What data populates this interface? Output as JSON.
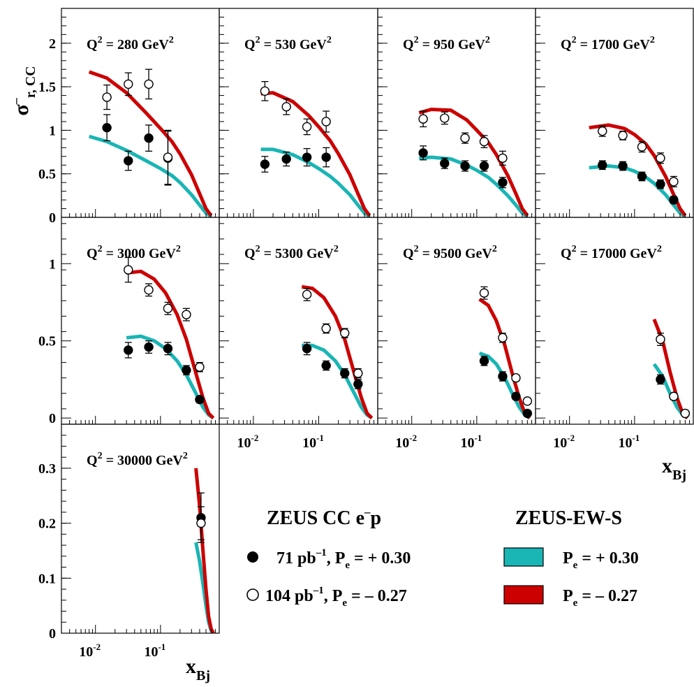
{
  "figure": {
    "ylabel_main": "σ",
    "ylabel_sup": "–",
    "ylabel_sub": "r, CC",
    "xlabel_main": "x",
    "xlabel_sub": "Bj"
  },
  "legend": {
    "data_title": "ZEUS CC e",
    "data_title_sup": "–",
    "data_title_tail": "p",
    "theory_title": "ZEUS-EW-S",
    "entries": [
      {
        "lum": "71 pb",
        "lum_sup": "–1",
        "pol_pre": ", P",
        "pol_sub": "e",
        "pol_val": " = + 0.30"
      },
      {
        "lum": "104 pb",
        "lum_sup": "–1",
        "pol_pre": ", P",
        "pol_sub": "e",
        "pol_val": " = – 0.27"
      }
    ],
    "theory_entries": [
      {
        "pre": "P",
        "sub": "e",
        "val": " = + 0.30",
        "color": "#1ab5b5"
      },
      {
        "pre": "P",
        "sub": "e",
        "val": " = – 0.27",
        "color": "#cc0000"
      }
    ]
  },
  "chart_data": [
    {
      "type": "scatter",
      "title": "Q² = 280 GeV²",
      "q2": "280",
      "xlim": [
        0.003,
        0.8
      ],
      "ylim": [
        0,
        2.4
      ],
      "yticks": [
        0,
        0.5,
        1,
        1.5,
        2
      ],
      "ytick_labels": [
        "0",
        "0.5",
        "1",
        "1.5",
        "2"
      ],
      "series": [
        {
          "pol": "+0.30",
          "marker": "filled",
          "x": [
            0.015,
            0.032,
            0.066,
            0.13
          ],
          "y": [
            1.03,
            0.65,
            0.91,
            0.68
          ],
          "err": [
            0.15,
            0.11,
            0.15,
            0.31
          ]
        },
        {
          "pol": "-0.27",
          "marker": "open",
          "x": [
            0.015,
            0.032,
            0.066,
            0.13
          ],
          "y": [
            1.38,
            1.53,
            1.53,
            0.69
          ],
          "err": [
            0.14,
            0.13,
            0.17,
            0.31
          ]
        }
      ],
      "bands": [
        {
          "pol": "+0.30",
          "color": "#1ab5b5",
          "x": [
            0.008,
            0.015,
            0.03,
            0.06,
            0.1,
            0.15,
            0.2,
            0.3,
            0.4,
            0.5,
            0.6
          ],
          "y": [
            0.93,
            0.87,
            0.77,
            0.65,
            0.56,
            0.48,
            0.4,
            0.26,
            0.14,
            0.05,
            0.01
          ]
        },
        {
          "pol": "-0.27",
          "color": "#cc0000",
          "x": [
            0.008,
            0.015,
            0.03,
            0.06,
            0.1,
            0.15,
            0.2,
            0.3,
            0.4,
            0.5,
            0.6
          ],
          "y": [
            1.67,
            1.6,
            1.43,
            1.2,
            1.02,
            0.87,
            0.73,
            0.49,
            0.27,
            0.1,
            0.02
          ]
        }
      ]
    },
    {
      "type": "scatter",
      "title": "Q² = 530 GeV²",
      "q2": "530",
      "xlim": [
        0.003,
        0.8
      ],
      "ylim": [
        0,
        2.4
      ],
      "series": [
        {
          "pol": "+0.30",
          "marker": "filled",
          "x": [
            0.015,
            0.032,
            0.066,
            0.13
          ],
          "y": [
            0.61,
            0.67,
            0.69,
            0.69
          ],
          "err": [
            0.09,
            0.08,
            0.1,
            0.11
          ]
        },
        {
          "pol": "-0.27",
          "marker": "open",
          "x": [
            0.015,
            0.032,
            0.066,
            0.13
          ],
          "y": [
            1.45,
            1.27,
            1.04,
            1.1
          ],
          "err": [
            0.11,
            0.09,
            0.09,
            0.12
          ]
        }
      ],
      "bands": [
        {
          "pol": "+0.30",
          "color": "#1ab5b5",
          "x": [
            0.013,
            0.02,
            0.04,
            0.07,
            0.1,
            0.15,
            0.2,
            0.3,
            0.4,
            0.5,
            0.6
          ],
          "y": [
            0.78,
            0.78,
            0.72,
            0.63,
            0.56,
            0.47,
            0.39,
            0.26,
            0.14,
            0.05,
            0.01
          ]
        },
        {
          "pol": "-0.27",
          "color": "#cc0000",
          "x": [
            0.013,
            0.02,
            0.04,
            0.07,
            0.1,
            0.15,
            0.2,
            0.3,
            0.4,
            0.5,
            0.6
          ],
          "y": [
            1.42,
            1.43,
            1.33,
            1.17,
            1.04,
            0.88,
            0.73,
            0.49,
            0.27,
            0.1,
            0.02
          ]
        }
      ]
    },
    {
      "type": "scatter",
      "title": "Q² = 950 GeV²",
      "q2": "950",
      "xlim": [
        0.003,
        0.8
      ],
      "ylim": [
        0,
        2.4
      ],
      "series": [
        {
          "pol": "+0.30",
          "marker": "filled",
          "x": [
            0.015,
            0.032,
            0.066,
            0.13,
            0.25
          ],
          "y": [
            0.74,
            0.62,
            0.59,
            0.59,
            0.4
          ],
          "err": [
            0.08,
            0.06,
            0.06,
            0.06,
            0.06
          ]
        },
        {
          "pol": "-0.27",
          "marker": "open",
          "x": [
            0.015,
            0.032,
            0.066,
            0.13,
            0.25
          ],
          "y": [
            1.13,
            1.14,
            0.91,
            0.87,
            0.68
          ],
          "err": [
            0.09,
            0.07,
            0.06,
            0.07,
            0.08
          ]
        }
      ],
      "bands": [
        {
          "pol": "+0.30",
          "color": "#1ab5b5",
          "x": [
            0.013,
            0.02,
            0.04,
            0.07,
            0.1,
            0.15,
            0.2,
            0.3,
            0.4,
            0.5,
            0.6
          ],
          "y": [
            0.68,
            0.69,
            0.67,
            0.6,
            0.54,
            0.46,
            0.38,
            0.25,
            0.14,
            0.05,
            0.01
          ]
        },
        {
          "pol": "-0.27",
          "color": "#cc0000",
          "x": [
            0.013,
            0.02,
            0.04,
            0.07,
            0.1,
            0.15,
            0.2,
            0.3,
            0.4,
            0.5,
            0.6
          ],
          "y": [
            1.2,
            1.24,
            1.23,
            1.12,
            1.0,
            0.86,
            0.72,
            0.48,
            0.27,
            0.1,
            0.02
          ]
        }
      ]
    },
    {
      "type": "scatter",
      "title": "Q² = 1700 GeV²",
      "q2": "1700",
      "xlim": [
        0.003,
        0.8
      ],
      "ylim": [
        0,
        2.4
      ],
      "series": [
        {
          "pol": "+0.30",
          "marker": "filled",
          "x": [
            0.032,
            0.066,
            0.13,
            0.25,
            0.4
          ],
          "y": [
            0.6,
            0.59,
            0.47,
            0.38,
            0.2
          ],
          "err": [
            0.05,
            0.05,
            0.05,
            0.05,
            0.04
          ]
        },
        {
          "pol": "-0.27",
          "marker": "open",
          "x": [
            0.032,
            0.066,
            0.13,
            0.25,
            0.4
          ],
          "y": [
            0.99,
            0.94,
            0.81,
            0.68,
            0.41
          ],
          "err": [
            0.06,
            0.05,
            0.06,
            0.06,
            0.06
          ]
        }
      ],
      "bands": [
        {
          "pol": "+0.30",
          "color": "#1ab5b5",
          "x": [
            0.02,
            0.04,
            0.07,
            0.1,
            0.15,
            0.2,
            0.3,
            0.4,
            0.5,
            0.6
          ],
          "y": [
            0.57,
            0.59,
            0.57,
            0.53,
            0.46,
            0.39,
            0.26,
            0.14,
            0.05,
            0.01
          ]
        },
        {
          "pol": "-0.27",
          "color": "#cc0000",
          "x": [
            0.02,
            0.04,
            0.07,
            0.1,
            0.15,
            0.2,
            0.3,
            0.4,
            0.5,
            0.6
          ],
          "y": [
            1.03,
            1.06,
            1.02,
            0.95,
            0.84,
            0.71,
            0.47,
            0.26,
            0.1,
            0.02
          ]
        }
      ]
    },
    {
      "type": "scatter",
      "title": "Q² = 3000 GeV²",
      "q2": "3000",
      "xlim": [
        0.003,
        0.8
      ],
      "ylim": [
        -0.04,
        1.3
      ],
      "yticks": [
        0,
        0.5,
        1
      ],
      "ytick_labels": [
        "0",
        "0.5",
        "1"
      ],
      "series": [
        {
          "pol": "+0.30",
          "marker": "filled",
          "x": [
            0.032,
            0.066,
            0.13,
            0.25,
            0.4
          ],
          "y": [
            0.44,
            0.46,
            0.45,
            0.31,
            0.12
          ],
          "err": [
            0.05,
            0.04,
            0.04,
            0.03,
            0.02
          ]
        },
        {
          "pol": "-0.27",
          "marker": "open",
          "x": [
            0.032,
            0.066,
            0.13,
            0.25,
            0.4
          ],
          "y": [
            0.96,
            0.83,
            0.71,
            0.67,
            0.33
          ],
          "err": [
            0.08,
            0.04,
            0.04,
            0.04,
            0.03
          ]
        }
      ],
      "bands": [
        {
          "pol": "+0.30",
          "color": "#1ab5b5",
          "x": [
            0.03,
            0.05,
            0.08,
            0.12,
            0.18,
            0.25,
            0.35,
            0.45,
            0.55,
            0.65
          ],
          "y": [
            0.52,
            0.53,
            0.5,
            0.45,
            0.37,
            0.28,
            0.16,
            0.07,
            0.02,
            0.0
          ]
        },
        {
          "pol": "-0.27",
          "color": "#cc0000",
          "x": [
            0.03,
            0.05,
            0.08,
            0.12,
            0.18,
            0.25,
            0.35,
            0.45,
            0.55,
            0.65
          ],
          "y": [
            0.94,
            0.95,
            0.9,
            0.81,
            0.67,
            0.51,
            0.29,
            0.13,
            0.03,
            0.0
          ]
        }
      ]
    },
    {
      "type": "scatter",
      "title": "Q² = 5300 GeV²",
      "q2": "5300",
      "xlim": [
        0.003,
        0.8
      ],
      "ylim": [
        -0.04,
        1.3
      ],
      "series": [
        {
          "pol": "+0.30",
          "marker": "filled",
          "x": [
            0.066,
            0.13,
            0.25,
            0.4
          ],
          "y": [
            0.45,
            0.34,
            0.29,
            0.22
          ],
          "err": [
            0.04,
            0.03,
            0.03,
            0.03
          ]
        },
        {
          "pol": "-0.27",
          "marker": "open",
          "x": [
            0.066,
            0.13,
            0.25,
            0.4
          ],
          "y": [
            0.8,
            0.58,
            0.55,
            0.29
          ],
          "err": [
            0.04,
            0.03,
            0.03,
            0.03
          ]
        }
      ],
      "bands": [
        {
          "pol": "+0.30",
          "color": "#1ab5b5",
          "x": [
            0.055,
            0.08,
            0.12,
            0.18,
            0.25,
            0.35,
            0.45,
            0.55,
            0.65
          ],
          "y": [
            0.47,
            0.47,
            0.44,
            0.37,
            0.28,
            0.16,
            0.07,
            0.02,
            0.0
          ]
        },
        {
          "pol": "-0.27",
          "color": "#cc0000",
          "x": [
            0.055,
            0.08,
            0.12,
            0.18,
            0.25,
            0.35,
            0.45,
            0.55,
            0.65
          ],
          "y": [
            0.85,
            0.84,
            0.78,
            0.66,
            0.51,
            0.29,
            0.13,
            0.03,
            0.0
          ]
        }
      ]
    },
    {
      "type": "scatter",
      "title": "Q² = 9500 GeV²",
      "q2": "9500",
      "xlim": [
        0.003,
        0.8
      ],
      "ylim": [
        -0.04,
        1.3
      ],
      "series": [
        {
          "pol": "+0.30",
          "marker": "filled",
          "x": [
            0.13,
            0.25,
            0.4,
            0.6
          ],
          "y": [
            0.37,
            0.27,
            0.14,
            0.03
          ],
          "err": [
            0.03,
            0.03,
            0.02,
            0.01
          ]
        },
        {
          "pol": "-0.27",
          "marker": "open",
          "x": [
            0.13,
            0.25,
            0.4,
            0.6
          ],
          "y": [
            0.81,
            0.52,
            0.26,
            0.11
          ],
          "err": [
            0.04,
            0.03,
            0.02,
            0.02
          ]
        }
      ],
      "bands": [
        {
          "pol": "+0.30",
          "color": "#1ab5b5",
          "x": [
            0.11,
            0.15,
            0.2,
            0.27,
            0.35,
            0.45,
            0.55,
            0.65
          ],
          "y": [
            0.42,
            0.4,
            0.35,
            0.26,
            0.16,
            0.07,
            0.02,
            0.0
          ]
        },
        {
          "pol": "-0.27",
          "color": "#cc0000",
          "x": [
            0.11,
            0.15,
            0.2,
            0.27,
            0.35,
            0.45,
            0.55,
            0.65
          ],
          "y": [
            0.77,
            0.73,
            0.63,
            0.47,
            0.29,
            0.13,
            0.03,
            0.0
          ]
        }
      ]
    },
    {
      "type": "scatter",
      "title": "Q² = 17000 GeV²",
      "q2": "17000",
      "xlim": [
        0.003,
        0.8
      ],
      "ylim": [
        -0.04,
        1.3
      ],
      "series": [
        {
          "pol": "+0.30",
          "marker": "filled",
          "x": [
            0.25,
            0.4,
            0.6
          ],
          "y": [
            0.25,
            0.14,
            0.03
          ],
          "err": [
            0.03,
            0.02,
            0.01
          ]
        },
        {
          "pol": "-0.27",
          "marker": "open",
          "x": [
            0.25,
            0.4,
            0.6
          ],
          "y": [
            0.51,
            0.14,
            0.03
          ],
          "err": [
            0.04,
            0.02,
            0.01
          ]
        }
      ],
      "bands": [
        {
          "pol": "+0.30",
          "color": "#1ab5b5",
          "x": [
            0.2,
            0.27,
            0.35,
            0.45,
            0.55,
            0.65
          ],
          "y": [
            0.35,
            0.27,
            0.16,
            0.07,
            0.02,
            0.0
          ]
        },
        {
          "pol": "-0.27",
          "color": "#cc0000",
          "x": [
            0.2,
            0.27,
            0.35,
            0.45,
            0.55,
            0.65
          ],
          "y": [
            0.64,
            0.5,
            0.3,
            0.13,
            0.03,
            0.0
          ]
        }
      ]
    },
    {
      "type": "scatter",
      "title": "Q² = 30000 GeV²",
      "q2": "30000",
      "xlim": [
        0.003,
        0.8
      ],
      "ylim": [
        0,
        0.38
      ],
      "yticks": [
        0,
        0.1,
        0.2,
        0.3
      ],
      "ytick_labels": [
        "0",
        "0.1",
        "0.2",
        "0.3"
      ],
      "xticks": [
        0.01,
        0.1
      ],
      "xtick_labels": [
        "10",
        "10"
      ],
      "xtick_exps": [
        "-2",
        "-1"
      ],
      "series": [
        {
          "pol": "+0.30",
          "marker": "filled",
          "x": [
            0.42
          ],
          "y": [
            0.21
          ],
          "err": [
            0.045
          ]
        },
        {
          "pol": "-0.27",
          "marker": "open",
          "x": [
            0.42
          ],
          "y": [
            0.2
          ],
          "err": [
            0.03
          ]
        }
      ],
      "bands": [
        {
          "pol": "+0.30",
          "color": "#1ab5b5",
          "x": [
            0.35,
            0.4,
            0.45,
            0.5,
            0.55,
            0.6,
            0.65
          ],
          "y": [
            0.165,
            0.13,
            0.09,
            0.05,
            0.02,
            0.005,
            0.0
          ]
        },
        {
          "pol": "-0.27",
          "color": "#cc0000",
          "x": [
            0.35,
            0.4,
            0.45,
            0.5,
            0.55,
            0.6,
            0.65
          ],
          "y": [
            0.3,
            0.23,
            0.15,
            0.08,
            0.03,
            0.008,
            0.0
          ]
        }
      ]
    }
  ]
}
